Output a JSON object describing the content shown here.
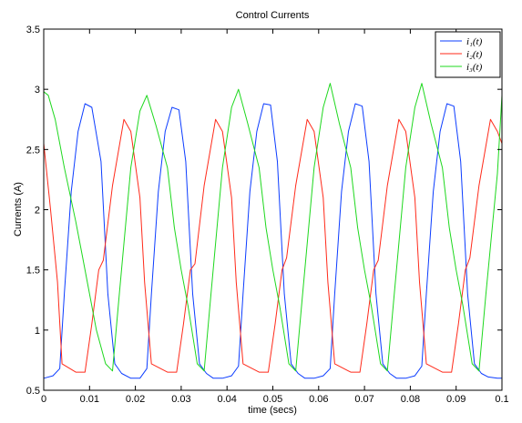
{
  "chart_data": {
    "type": "line",
    "title": "Control Currents",
    "xlabel": "time (secs)",
    "ylabel": "Currents (A)",
    "xlim": [
      0,
      0.1
    ],
    "ylim": [
      0.5,
      3.5
    ],
    "x_ticks": [
      0,
      0.01,
      0.02,
      0.03,
      0.04,
      0.05,
      0.06,
      0.07,
      0.08,
      0.09,
      0.1
    ],
    "x_tick_labels": [
      "0",
      "0.01",
      "0.02",
      "0.03",
      "0.04",
      "0.05",
      "0.06",
      "0.07",
      "0.08",
      "0.09",
      "0.1"
    ],
    "y_ticks": [
      0.5,
      1,
      1.5,
      2,
      2.5,
      3,
      3.5
    ],
    "y_tick_labels": [
      "0.5",
      "1",
      "1.5",
      "2",
      "2.5",
      "3",
      "3.5"
    ],
    "grid": false,
    "legend_position": "top-right",
    "series": [
      {
        "name": "i₁(t)",
        "color": "#0b3cff",
        "x": [
          0,
          0.002,
          0.0035,
          0.0045,
          0.006,
          0.0075,
          0.009,
          0.0105,
          0.0125,
          0.014,
          0.0155,
          0.017,
          0.019,
          0.021,
          0.0225,
          0.0235,
          0.025,
          0.0265,
          0.028,
          0.0295,
          0.031,
          0.0325,
          0.034,
          0.0355,
          0.037,
          0.039,
          0.041,
          0.0425,
          0.0435,
          0.045,
          0.0465,
          0.048,
          0.0495,
          0.051,
          0.0525,
          0.054,
          0.0555,
          0.057,
          0.059,
          0.061,
          0.0625,
          0.0635,
          0.065,
          0.0665,
          0.068,
          0.0695,
          0.071,
          0.0725,
          0.074,
          0.0755,
          0.077,
          0.079,
          0.081,
          0.0825,
          0.0835,
          0.085,
          0.0865,
          0.088,
          0.0895,
          0.091,
          0.0925,
          0.094,
          0.0955,
          0.097,
          0.099,
          0.1
        ],
        "y": [
          0.6,
          0.62,
          0.68,
          1.3,
          2.15,
          2.65,
          2.88,
          2.85,
          2.4,
          1.3,
          0.72,
          0.64,
          0.6,
          0.6,
          0.68,
          1.3,
          2.15,
          2.65,
          2.85,
          2.83,
          2.4,
          1.3,
          0.72,
          0.64,
          0.6,
          0.6,
          0.62,
          0.7,
          1.3,
          2.15,
          2.65,
          2.88,
          2.87,
          2.4,
          1.3,
          0.72,
          0.64,
          0.6,
          0.6,
          0.62,
          0.68,
          1.3,
          2.15,
          2.65,
          2.88,
          2.86,
          2.4,
          1.3,
          0.72,
          0.64,
          0.6,
          0.6,
          0.62,
          0.7,
          1.3,
          2.15,
          2.65,
          2.88,
          2.86,
          2.4,
          1.3,
          0.72,
          0.64,
          0.61,
          0.6,
          0.6
        ]
      },
      {
        "name": "i₂(t)",
        "color": "#ff2a1a",
        "x": [
          0,
          0.0015,
          0.003,
          0.004,
          0.007,
          0.009,
          0.0105,
          0.012,
          0.013,
          0.015,
          0.0175,
          0.019,
          0.021,
          0.022,
          0.0235,
          0.027,
          0.029,
          0.0305,
          0.032,
          0.033,
          0.035,
          0.0375,
          0.039,
          0.041,
          0.042,
          0.0435,
          0.047,
          0.049,
          0.0505,
          0.052,
          0.053,
          0.055,
          0.0575,
          0.059,
          0.061,
          0.062,
          0.0635,
          0.067,
          0.069,
          0.0705,
          0.072,
          0.073,
          0.075,
          0.0775,
          0.079,
          0.081,
          0.082,
          0.0835,
          0.087,
          0.089,
          0.0905,
          0.092,
          0.093,
          0.095,
          0.0975,
          0.099,
          0.1
        ],
        "y": [
          2.55,
          2.0,
          1.4,
          0.72,
          0.65,
          0.65,
          1.05,
          1.5,
          1.58,
          2.2,
          2.75,
          2.65,
          2.1,
          1.4,
          0.72,
          0.65,
          0.65,
          1.05,
          1.5,
          1.55,
          2.2,
          2.75,
          2.65,
          2.1,
          1.4,
          0.72,
          0.65,
          0.65,
          1.05,
          1.5,
          1.6,
          2.2,
          2.75,
          2.65,
          2.1,
          1.4,
          0.72,
          0.65,
          0.65,
          1.05,
          1.5,
          1.58,
          2.2,
          2.75,
          2.65,
          2.1,
          1.4,
          0.72,
          0.65,
          0.65,
          1.05,
          1.5,
          1.6,
          2.2,
          2.75,
          2.65,
          2.55
        ]
      },
      {
        "name": "i₃(t)",
        "color": "#1ed81e",
        "x": [
          0,
          0.001,
          0.0025,
          0.0045,
          0.007,
          0.0085,
          0.01,
          0.0115,
          0.0135,
          0.015,
          0.0165,
          0.019,
          0.021,
          0.0225,
          0.0245,
          0.027,
          0.0285,
          0.03,
          0.0315,
          0.0335,
          0.035,
          0.0365,
          0.039,
          0.041,
          0.0425,
          0.0445,
          0.047,
          0.0485,
          0.05,
          0.0515,
          0.0535,
          0.055,
          0.0565,
          0.059,
          0.061,
          0.0625,
          0.0645,
          0.067,
          0.0685,
          0.07,
          0.0715,
          0.0735,
          0.075,
          0.0765,
          0.079,
          0.081,
          0.0825,
          0.0845,
          0.087,
          0.0885,
          0.09,
          0.0915,
          0.0935,
          0.095,
          0.0965,
          0.099,
          0.1
        ],
        "y": [
          2.98,
          2.95,
          2.75,
          2.35,
          1.9,
          1.6,
          1.3,
          1.0,
          0.72,
          0.66,
          1.3,
          2.35,
          2.82,
          2.95,
          2.7,
          2.35,
          1.85,
          1.5,
          1.2,
          0.72,
          0.66,
          1.3,
          2.35,
          2.85,
          3.0,
          2.72,
          2.35,
          1.85,
          1.5,
          1.2,
          0.72,
          0.66,
          1.3,
          2.35,
          2.85,
          3.05,
          2.72,
          2.35,
          1.85,
          1.5,
          1.2,
          0.72,
          0.66,
          1.3,
          2.35,
          2.85,
          3.05,
          2.72,
          2.35,
          1.85,
          1.5,
          1.2,
          0.72,
          0.66,
          1.3,
          2.3,
          2.95
        ]
      }
    ]
  }
}
